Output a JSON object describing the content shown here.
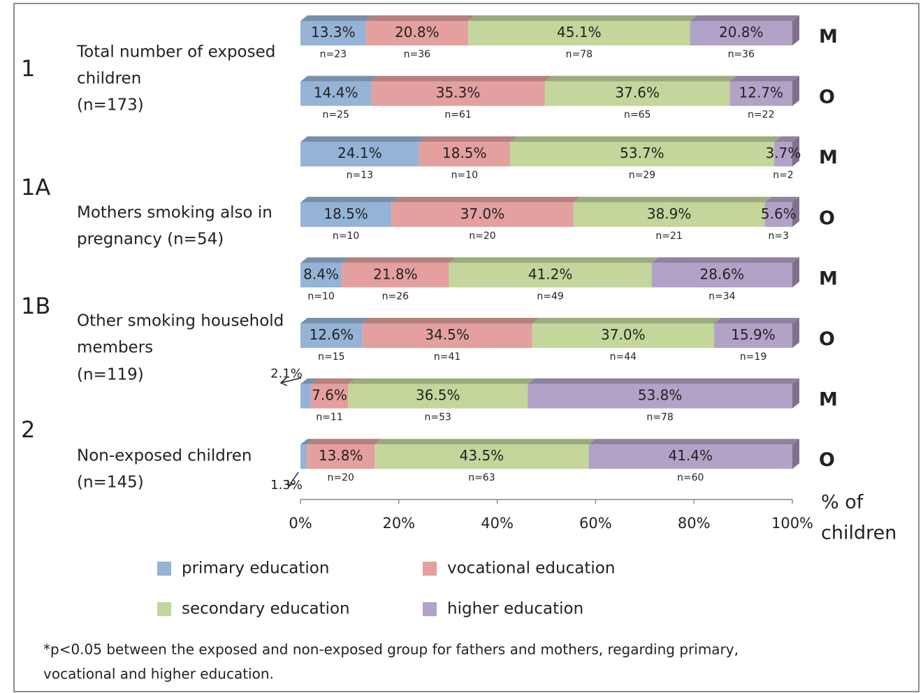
{
  "chart_data": {
    "type": "stacked_bar_horizontal",
    "categories": [
      "M",
      "O",
      "M",
      "O",
      "M",
      "O",
      "M",
      "O"
    ],
    "groups": [
      {
        "id": "1",
        "label_lines": [
          "Total number of exposed",
          "children",
          "(n=173)"
        ]
      },
      {
        "id": "1A",
        "label_lines": [
          "Mothers smoking also in",
          "pregnancy (n=54)"
        ]
      },
      {
        "id": "1B",
        "label_lines": [
          "Other smoking household",
          "members",
          "(n=119)"
        ]
      },
      {
        "id": "2",
        "label_lines": [
          "Non-exposed children",
          "(n=145)"
        ]
      }
    ],
    "series": [
      {
        "name": "primary education",
        "color": "#95b3d7",
        "values": [
          13.3,
          14.4,
          24.1,
          18.5,
          8.4,
          12.6,
          2.1,
          1.3
        ],
        "value_labels": [
          "13.3%",
          "14.4%",
          "24.1%",
          "18.5%",
          "8.4%",
          "12.6%",
          "2.1%",
          "1.3%"
        ],
        "count_labels": [
          "n=23",
          "n=25",
          "n=13",
          "n=10",
          "n=10",
          "n=15",
          null,
          null
        ]
      },
      {
        "name": "vocational education",
        "color": "#e3a09e",
        "values": [
          20.8,
          35.3,
          18.5,
          37.0,
          21.8,
          34.5,
          7.6,
          13.8
        ],
        "value_labels": [
          "20.8%",
          "35.3%",
          "18.5%",
          "37.0%",
          "21.8%",
          "34.5%",
          "7.6%",
          "13.8%"
        ],
        "count_labels": [
          "n=36",
          "n=61",
          "n=10",
          "n=20",
          "n=26",
          "n=41",
          "n=11",
          "n=20"
        ]
      },
      {
        "name": "secondary education",
        "color": "#c3d69b",
        "values": [
          45.1,
          37.6,
          53.7,
          38.9,
          41.2,
          37.0,
          36.5,
          43.5
        ],
        "value_labels": [
          "45.1%",
          "37.6%",
          "53.7%",
          "38.9%",
          "41.2%",
          "37.0%",
          "36.5%",
          "43.5%"
        ],
        "count_labels": [
          "n=78",
          "n=65",
          "n=29",
          "n=21",
          "n=49",
          "n=44",
          "n=53",
          "n=63"
        ]
      },
      {
        "name": "higher education",
        "color": "#b3a2c7",
        "values": [
          20.8,
          12.7,
          3.7,
          5.6,
          28.6,
          15.9,
          53.8,
          41.4
        ],
        "value_labels": [
          "20.8%",
          "12.7%",
          "3.7%",
          "5.6%",
          "28.6%",
          "15.9%",
          "53.8%",
          "41.4%"
        ],
        "count_labels": [
          "n=36",
          "n=22",
          "n=2",
          "n=3",
          "n=34",
          "n=19",
          "n=78",
          "n=60"
        ]
      }
    ],
    "xlim": [
      0,
      100
    ],
    "xticks": [
      {
        "value": 0,
        "label": "0%"
      },
      {
        "value": 20,
        "label": "20%"
      },
      {
        "value": 40,
        "label": "40%"
      },
      {
        "value": 60,
        "label": "60%"
      },
      {
        "value": 80,
        "label": "80%"
      },
      {
        "value": 100,
        "label": "100%"
      }
    ],
    "x_label_lines": [
      "% of",
      "children"
    ],
    "footnote_lines": [
      "*p<0.05  between the exposed and non-exposed group  for fathers and mothers, regarding  primary,",
      "vocational  and higher education."
    ]
  }
}
